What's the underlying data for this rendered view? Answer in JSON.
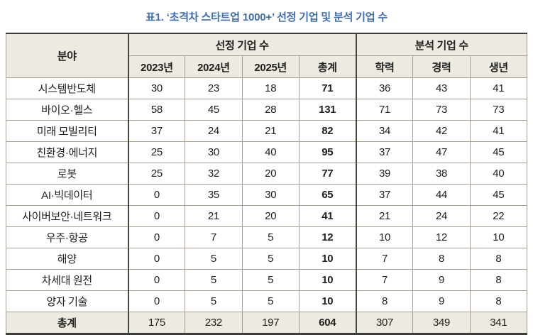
{
  "title": "표1. ‘초격차 스타트업 1000+’ 선정 기업 및 분석 기업 수",
  "colors": {
    "title_blue": "#3d6db4",
    "header_bg": "#edeae2",
    "grid_tan": "#a99f90",
    "grid_dark": "#3c3c3a"
  },
  "table": {
    "field_header": "분야",
    "group_selected": "선정 기업 수",
    "group_analyzed": "분석 기업 수",
    "subheaders": [
      "2023년",
      "2024년",
      "2025년",
      "총계",
      "학력",
      "경력",
      "생년"
    ],
    "rows": [
      {
        "field": "시스템반도체",
        "values": [
          30,
          23,
          18,
          71,
          36,
          43,
          41
        ]
      },
      {
        "field": "바이오·헬스",
        "values": [
          58,
          45,
          28,
          131,
          71,
          73,
          73
        ]
      },
      {
        "field": "미래 모빌리티",
        "values": [
          37,
          24,
          21,
          82,
          34,
          42,
          41
        ]
      },
      {
        "field": "친환경·에너지",
        "values": [
          25,
          30,
          40,
          95,
          37,
          47,
          45
        ]
      },
      {
        "field": "로봇",
        "values": [
          25,
          32,
          20,
          77,
          39,
          38,
          40
        ]
      },
      {
        "field": "AI·빅데이터",
        "values": [
          0,
          35,
          30,
          65,
          37,
          44,
          45
        ]
      },
      {
        "field": "사이버보안·네트워크",
        "values": [
          0,
          21,
          20,
          41,
          21,
          24,
          22
        ]
      },
      {
        "field": "우주·항공",
        "values": [
          0,
          7,
          5,
          12,
          10,
          12,
          10
        ]
      },
      {
        "field": "해양",
        "values": [
          0,
          5,
          5,
          10,
          7,
          8,
          8
        ]
      },
      {
        "field": "차세대 원전",
        "values": [
          0,
          5,
          5,
          10,
          7,
          9,
          8
        ]
      },
      {
        "field": "양자 기술",
        "values": [
          0,
          5,
          5,
          10,
          8,
          9,
          8
        ]
      }
    ],
    "total_row": {
      "field": "총계",
      "values": [
        175,
        232,
        197,
        604,
        307,
        349,
        341
      ]
    }
  }
}
